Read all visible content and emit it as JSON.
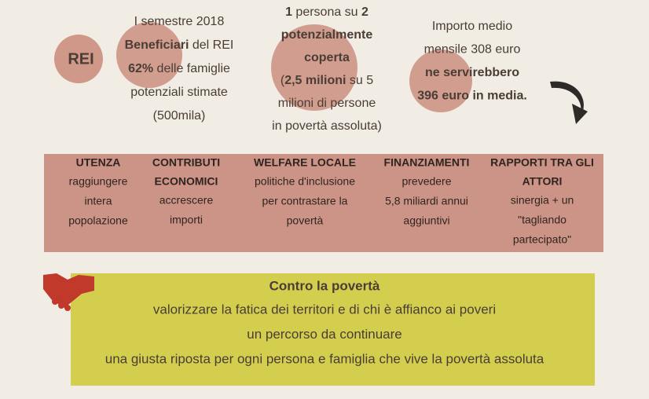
{
  "logo": "REI",
  "stats": [
    {
      "lines": [
        [
          {
            "text": "I semestre 2018",
            "bold": false
          }
        ],
        [
          {
            "text": "Beneficiari",
            "bold": true
          },
          {
            "text": " del REI",
            "bold": false
          }
        ],
        [
          {
            "text": "62%",
            "bold": true
          },
          {
            "text": " delle famiglie",
            "bold": false
          }
        ],
        [
          {
            "text": "potenziali stimate",
            "bold": false
          }
        ],
        [
          {
            "text": "(500mila)",
            "bold": false
          }
        ]
      ]
    },
    {
      "lines": [
        [
          {
            "text": "1",
            "bold": true
          },
          {
            "text": " persona su ",
            "bold": false
          },
          {
            "text": "2",
            "bold": true
          }
        ],
        [
          {
            "text": "potenzialmente",
            "bold": true
          }
        ],
        [
          {
            "text": "coperta",
            "bold": true
          }
        ],
        [
          {
            "text": "(",
            "bold": false
          },
          {
            "text": "2,5 milioni",
            "bold": true
          },
          {
            "text": " su 5",
            "bold": false
          }
        ],
        [
          {
            "text": "milioni di persone",
            "bold": false
          }
        ],
        [
          {
            "text": "in povertà assoluta)",
            "bold": false
          }
        ]
      ]
    },
    {
      "lines": [
        [
          {
            "text": "Importo medio",
            "bold": false
          }
        ],
        [
          {
            "text": "mensile 308 euro",
            "bold": false
          }
        ],
        [
          {
            "text": "ne servirebbero",
            "bold": true
          }
        ],
        [
          {
            "text": "396 euro in media.",
            "bold": true
          }
        ]
      ]
    }
  ],
  "pillars": [
    {
      "heading": [
        "UTENZA"
      ],
      "lines": [
        "raggiungere",
        "intera",
        "popolazione"
      ]
    },
    {
      "heading": [
        "CONTRIBUTI",
        "ECONOMICI"
      ],
      "lines": [
        "accrescere",
        "importi"
      ]
    },
    {
      "heading": [
        "WELFARE LOCALE"
      ],
      "lines": [
        "politiche d'inclusione",
        "per contrastare la",
        "povertà"
      ]
    },
    {
      "heading": [
        "FINANZIAMENTI"
      ],
      "lines": [
        "prevedere",
        "5,8 miliardi annui",
        "aggiuntivi"
      ]
    },
    {
      "heading": [
        "RAPPORTI TRA GLI",
        "ATTORI"
      ],
      "lines": [
        "sinergia + un",
        "\"tagliando",
        "partecipato\""
      ]
    }
  ],
  "conclusion": {
    "title": "Contro la povertà",
    "lines": [
      "valorizzare la fatica dei territori e di chi è affianco ai poveri",
      "un percorso da continuare",
      "una giusta riposta per ogni persona e famiglia che vive la povertà assoluta"
    ]
  }
}
